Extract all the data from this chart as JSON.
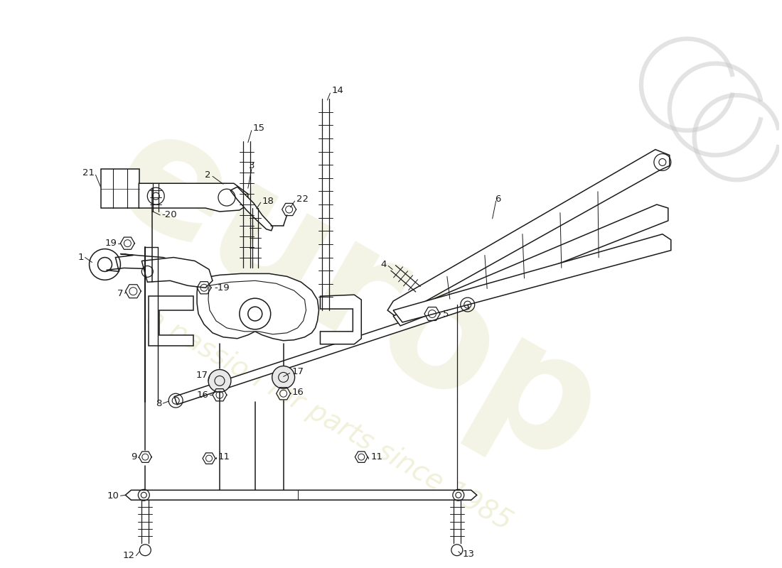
{
  "bg_color": "#ffffff",
  "lc": "#1a1a1a",
  "fig_w": 11.0,
  "fig_h": 8.0,
  "dpi": 100,
  "wm1": "europ",
  "wm2": "a passion for parts since 1985",
  "wm_col1": "#c8c880",
  "wm_col2": "#c8c870"
}
